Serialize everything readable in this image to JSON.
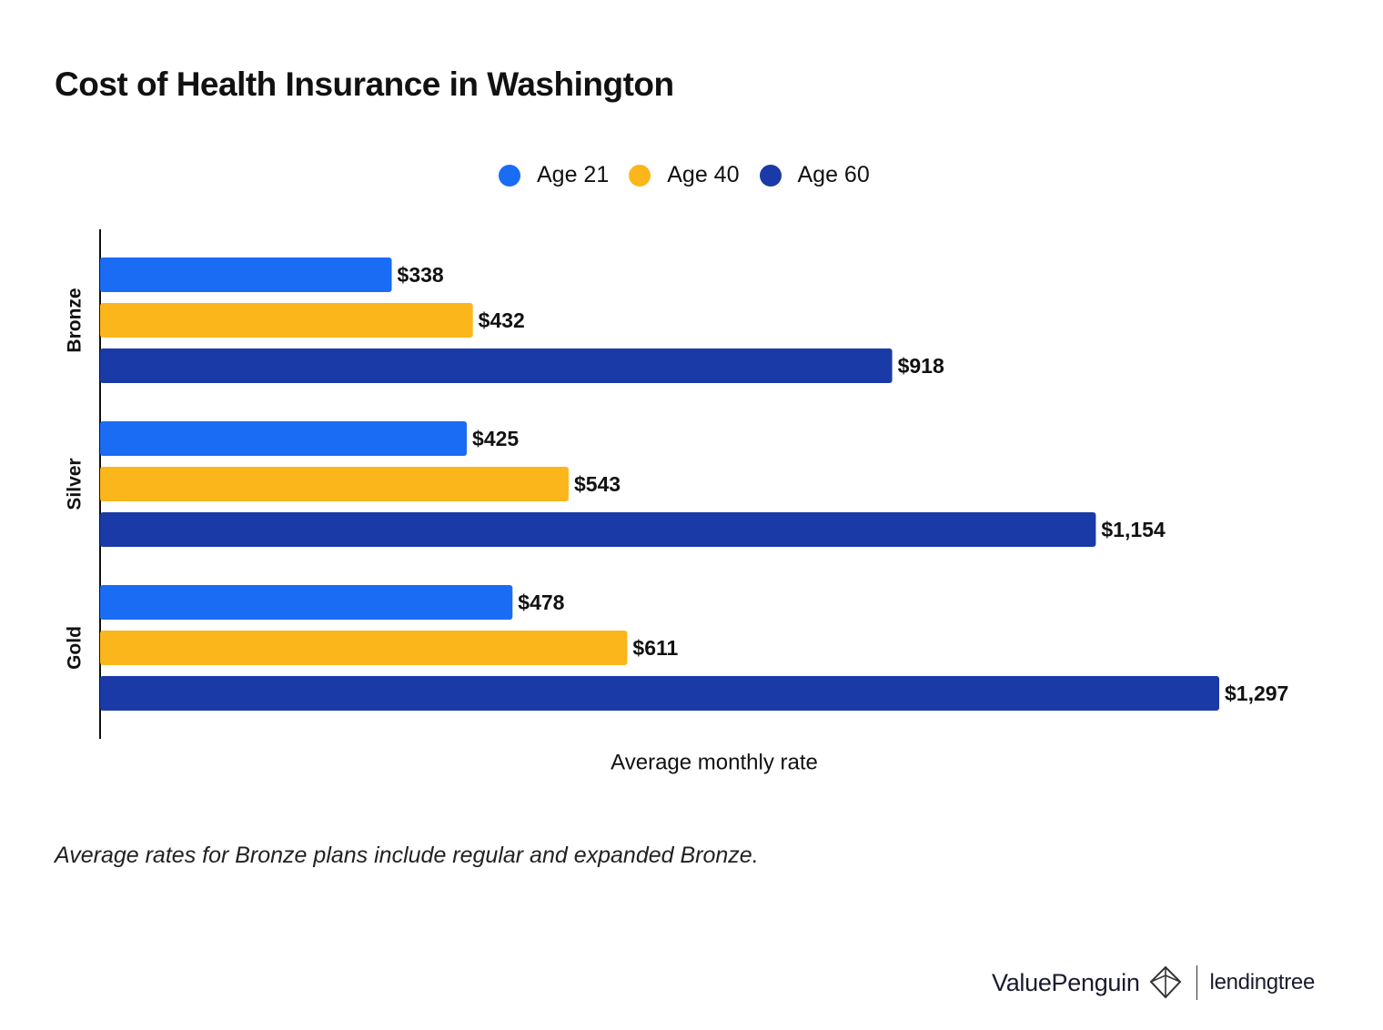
{
  "header": {
    "title": "Cost of Health Insurance in Washington"
  },
  "legend": [
    {
      "label": "Age 21",
      "color": "#1a6cf5"
    },
    {
      "label": "Age 40",
      "color": "#fbb61b"
    },
    {
      "label": "Age 60",
      "color": "#1a3aa8"
    }
  ],
  "chart_data": {
    "type": "bar",
    "orientation": "horizontal",
    "categories": [
      "Bronze",
      "Silver",
      "Gold"
    ],
    "series": [
      {
        "name": "Age 21",
        "values": [
          338,
          425,
          478
        ],
        "labels": [
          "$338",
          "$425",
          "$478"
        ],
        "color": "#1a6cf5"
      },
      {
        "name": "Age 40",
        "values": [
          432,
          543,
          611
        ],
        "labels": [
          "$432",
          "$543",
          "$611"
        ],
        "color": "#fbb61b"
      },
      {
        "name": "Age 60",
        "values": [
          918,
          1154,
          1297
        ],
        "labels": [
          "$918",
          "$1,154",
          "$1,297"
        ],
        "color": "#1a3aa8"
      }
    ],
    "xlabel": "Average monthly rate",
    "ylabel": "",
    "xlim": [
      0,
      1297
    ],
    "grid": false,
    "legend_position": "top"
  },
  "footnote": "Average rates for Bronze plans include regular and expanded Bronze.",
  "branding": {
    "valuepenguin": "ValuePenguin",
    "lendingtree": "lendingtree"
  }
}
